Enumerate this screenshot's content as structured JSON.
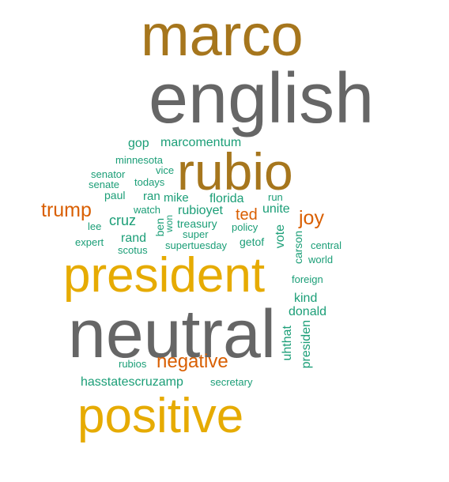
{
  "colors": {
    "background": "#ffffff",
    "gray": "#666666",
    "brown": "#a6761d",
    "gold": "#e6ab02",
    "orange": "#d95f02",
    "teal": "#1b9e77"
  },
  "words": [
    {
      "id": "marco",
      "text": "marco",
      "color": "#a6761d"
    },
    {
      "id": "english",
      "text": "english",
      "color": "#666666"
    },
    {
      "id": "rubio",
      "text": "rubio",
      "color": "#a6761d"
    },
    {
      "id": "president",
      "text": "president",
      "color": "#e6ab02"
    },
    {
      "id": "neutral",
      "text": "neutral",
      "color": "#666666"
    },
    {
      "id": "positive",
      "text": "positive",
      "color": "#e6ab02"
    },
    {
      "id": "negative",
      "text": "negative",
      "color": "#d95f02"
    },
    {
      "id": "trump",
      "text": "trump",
      "color": "#d95f02"
    },
    {
      "id": "joy",
      "text": "joy",
      "color": "#d95f02"
    },
    {
      "id": "ted",
      "text": "ted",
      "color": "#d95f02"
    },
    {
      "id": "gop",
      "text": "gop",
      "color": "#1b9e77"
    },
    {
      "id": "marcomentum",
      "text": "marcomentum",
      "color": "#1b9e77"
    },
    {
      "id": "minnesota",
      "text": "minnesota",
      "color": "#1b9e77"
    },
    {
      "id": "vice",
      "text": "vice",
      "color": "#1b9e77"
    },
    {
      "id": "senator",
      "text": "senator",
      "color": "#1b9e77"
    },
    {
      "id": "todays",
      "text": "todays",
      "color": "#1b9e77"
    },
    {
      "id": "senate",
      "text": "senate",
      "color": "#1b9e77"
    },
    {
      "id": "paul",
      "text": "paul",
      "color": "#1b9e77"
    },
    {
      "id": "ran",
      "text": "ran",
      "color": "#1b9e77"
    },
    {
      "id": "mike",
      "text": "mike",
      "color": "#1b9e77"
    },
    {
      "id": "florida",
      "text": "florida",
      "color": "#1b9e77"
    },
    {
      "id": "run",
      "text": "run",
      "color": "#1b9e77"
    },
    {
      "id": "watch",
      "text": "watch",
      "color": "#1b9e77"
    },
    {
      "id": "rubioyet",
      "text": "rubioyet",
      "color": "#1b9e77"
    },
    {
      "id": "unite",
      "text": "unite",
      "color": "#1b9e77"
    },
    {
      "id": "cruz",
      "text": "cruz",
      "color": "#1b9e77"
    },
    {
      "id": "lee",
      "text": "lee",
      "color": "#1b9e77"
    },
    {
      "id": "ben",
      "text": "ben",
      "color": "#1b9e77"
    },
    {
      "id": "won",
      "text": "won",
      "color": "#1b9e77"
    },
    {
      "id": "treasury",
      "text": "treasury",
      "color": "#1b9e77"
    },
    {
      "id": "policy",
      "text": "policy",
      "color": "#1b9e77"
    },
    {
      "id": "rand",
      "text": "rand",
      "color": "#1b9e77"
    },
    {
      "id": "super",
      "text": "super",
      "color": "#1b9e77"
    },
    {
      "id": "getof",
      "text": "getof",
      "color": "#1b9e77"
    },
    {
      "id": "expert",
      "text": "expert",
      "color": "#1b9e77"
    },
    {
      "id": "scotus",
      "text": "scotus",
      "color": "#1b9e77"
    },
    {
      "id": "supertuesday",
      "text": "supertuesday",
      "color": "#1b9e77"
    },
    {
      "id": "vote",
      "text": "vote",
      "color": "#1b9e77"
    },
    {
      "id": "carson",
      "text": "carson",
      "color": "#1b9e77"
    },
    {
      "id": "central",
      "text": "central",
      "color": "#1b9e77"
    },
    {
      "id": "world",
      "text": "world",
      "color": "#1b9e77"
    },
    {
      "id": "foreign",
      "text": "foreign",
      "color": "#1b9e77"
    },
    {
      "id": "kind",
      "text": "kind",
      "color": "#1b9e77"
    },
    {
      "id": "donald",
      "text": "donald",
      "color": "#1b9e77"
    },
    {
      "id": "uhthat",
      "text": "uhthat",
      "color": "#1b9e77"
    },
    {
      "id": "presiden",
      "text": "presiden",
      "color": "#1b9e77"
    },
    {
      "id": "rubios",
      "text": "rubios",
      "color": "#1b9e77"
    },
    {
      "id": "hasstatescruzamp",
      "text": "hasstatescruzamp",
      "color": "#1b9e77"
    },
    {
      "id": "secretary",
      "text": "secretary",
      "color": "#1b9e77"
    }
  ]
}
